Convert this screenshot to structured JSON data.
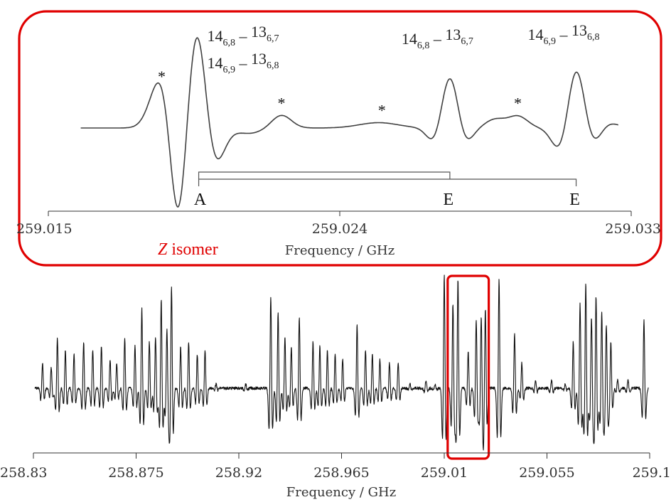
{
  "chart_data": [
    {
      "type": "line",
      "panel": "inset",
      "xlabel": "Frequency / GHz",
      "xlim": [
        259.015,
        259.033
      ],
      "x_ticks": [
        259.015,
        259.024,
        259.033
      ],
      "x_tick_labels": [
        "259.015",
        "259.024",
        "259.033"
      ],
      "isomer_label": {
        "italic": "Z",
        "rest": " isomer"
      },
      "peaks": [
        {
          "x": 259.0185,
          "y": 0.5,
          "width": 0.00033
        },
        {
          "x": 259.019,
          "y": -1.0,
          "width": 0.00025
        },
        {
          "x": 259.0196,
          "y": 1.0,
          "width": 0.00028
        },
        {
          "x": 259.0201,
          "y": -0.4,
          "width": 0.0003
        },
        {
          "x": 259.0222,
          "y": 0.12,
          "width": 0.0003
        },
        {
          "x": 259.0212,
          "y": -0.05,
          "width": 0.0004
        },
        {
          "x": 259.0252,
          "y": 0.05,
          "width": 0.0006
        },
        {
          "x": 259.0274,
          "y": 0.6,
          "width": 0.0003
        },
        {
          "x": 259.027,
          "y": -0.25,
          "width": 0.00025
        },
        {
          "x": 259.0278,
          "y": -0.25,
          "width": 0.00025
        },
        {
          "x": 259.0288,
          "y": 0.08,
          "width": 0.0003
        },
        {
          "x": 259.0295,
          "y": 0.11,
          "width": 0.0003
        },
        {
          "x": 259.0313,
          "y": 0.75,
          "width": 0.0003
        },
        {
          "x": 259.0309,
          "y": -0.35,
          "width": 0.00028
        },
        {
          "x": 259.0317,
          "y": -0.28,
          "width": 0.00028
        },
        {
          "x": 259.0323,
          "y": 0.05,
          "width": 0.0003
        }
      ],
      "assignments": [
        {
          "lines": [
            {
              "a": "14",
              "asub": "6,8",
              "dash": " – ",
              "b": "13",
              "bsub": "6,7"
            },
            {
              "a": "14",
              "asub": "6,9",
              "dash": " – ",
              "b": "13",
              "bsub": "6,8"
            }
          ],
          "x": 259.0196
        },
        {
          "lines": [
            {
              "a": "14",
              "asub": "6,8",
              "dash": " – ",
              "b": "13",
              "bsub": "6,7"
            }
          ],
          "x": 259.0274
        },
        {
          "lines": [
            {
              "a": "14",
              "asub": "6,9",
              "dash": " – ",
              "b": "13",
              "bsub": "6,8"
            }
          ],
          "x": 259.0313
        }
      ],
      "star_marks": [
        {
          "label": "*",
          "x": 259.0185
        },
        {
          "label": "*",
          "x": 259.0222
        },
        {
          "label": "*",
          "x": 259.0253
        },
        {
          "label": "*",
          "x": 259.0295
        }
      ],
      "splitting": {
        "from_x": 259.0196,
        "to_x": [
          259.0274,
          259.0313
        ],
        "labels": [
          "A",
          "E",
          "E"
        ]
      }
    },
    {
      "type": "line",
      "panel": "overview",
      "xlabel": "Frequency / GHz",
      "xlim": [
        258.83,
        259.1
      ],
      "x_ticks": [
        258.83,
        258.875,
        258.92,
        258.965,
        259.01,
        259.055,
        259.1
      ],
      "x_tick_labels": [
        "258.83",
        "258.875",
        "258.92",
        "258.965",
        "259.01",
        "259.055",
        "259.1"
      ],
      "highlight_range": [
        259.0115,
        259.0295
      ],
      "lines": [
        {
          "x": 258.834,
          "y": 0.3
        },
        {
          "x": 258.8378,
          "y": 0.25
        },
        {
          "x": 258.8405,
          "y": 0.6
        },
        {
          "x": 258.844,
          "y": 0.45
        },
        {
          "x": 258.8478,
          "y": 0.4
        },
        {
          "x": 258.852,
          "y": 0.55
        },
        {
          "x": 258.856,
          "y": 0.45
        },
        {
          "x": 258.8598,
          "y": 0.5
        },
        {
          "x": 258.8636,
          "y": 0.35
        },
        {
          "x": 258.8665,
          "y": 0.3
        },
        {
          "x": 258.87,
          "y": 0.6
        },
        {
          "x": 258.8745,
          "y": 0.5
        },
        {
          "x": 258.8775,
          "y": 0.95
        },
        {
          "x": 258.8808,
          "y": 0.55
        },
        {
          "x": 258.8835,
          "y": 0.6
        },
        {
          "x": 258.886,
          "y": 1.05
        },
        {
          "x": 258.8885,
          "y": 0.7
        },
        {
          "x": 258.8905,
          "y": 1.2
        },
        {
          "x": 258.8945,
          "y": 0.5
        },
        {
          "x": 258.898,
          "y": 0.55
        },
        {
          "x": 258.9018,
          "y": 0.4
        },
        {
          "x": 258.9052,
          "y": 0.45
        },
        {
          "x": 258.91,
          "y": 0.05
        },
        {
          "x": 258.923,
          "y": 0.05
        },
        {
          "x": 258.934,
          "y": 1.1
        },
        {
          "x": 258.9372,
          "y": 0.9
        },
        {
          "x": 258.9402,
          "y": 0.6
        },
        {
          "x": 258.943,
          "y": 0.5
        },
        {
          "x": 258.9465,
          "y": 0.85
        },
        {
          "x": 258.9525,
          "y": 0.55
        },
        {
          "x": 258.9555,
          "y": 0.5
        },
        {
          "x": 258.9588,
          "y": 0.45
        },
        {
          "x": 258.9622,
          "y": 0.4
        },
        {
          "x": 258.9655,
          "y": 0.35
        },
        {
          "x": 258.9718,
          "y": 0.75
        },
        {
          "x": 258.9755,
          "y": 0.45
        },
        {
          "x": 258.9785,
          "y": 0.4
        },
        {
          "x": 258.9818,
          "y": 0.35
        },
        {
          "x": 258.986,
          "y": 0.3
        },
        {
          "x": 258.9898,
          "y": 0.3
        },
        {
          "x": 258.995,
          "y": 0.05
        },
        {
          "x": 259.002,
          "y": 0.1
        },
        {
          "x": 259.006,
          "y": 0.05
        },
        {
          "x": 259.01,
          "y": 1.35
        },
        {
          "x": 259.0138,
          "y": 1.0
        },
        {
          "x": 259.016,
          "y": 1.3
        },
        {
          "x": 259.0205,
          "y": 0.45
        },
        {
          "x": 259.024,
          "y": 0.8
        },
        {
          "x": 259.0262,
          "y": 0.85
        },
        {
          "x": 259.028,
          "y": 0.95
        },
        {
          "x": 259.034,
          "y": 1.3
        },
        {
          "x": 259.0408,
          "y": 0.65
        },
        {
          "x": 259.044,
          "y": 0.3
        },
        {
          "x": 259.05,
          "y": 0.1
        },
        {
          "x": 259.057,
          "y": 0.1
        },
        {
          "x": 259.063,
          "y": 0.05
        },
        {
          "x": 259.0665,
          "y": 0.55
        },
        {
          "x": 259.0695,
          "y": 1.0
        },
        {
          "x": 259.072,
          "y": 1.25
        },
        {
          "x": 259.0745,
          "y": 0.85
        },
        {
          "x": 259.0765,
          "y": 1.1
        },
        {
          "x": 259.079,
          "y": 0.9
        },
        {
          "x": 259.081,
          "y": 0.75
        },
        {
          "x": 259.083,
          "y": 0.55
        },
        {
          "x": 259.086,
          "y": 0.1
        },
        {
          "x": 259.0905,
          "y": 0.1
        },
        {
          "x": 259.0975,
          "y": 0.8
        }
      ]
    }
  ]
}
